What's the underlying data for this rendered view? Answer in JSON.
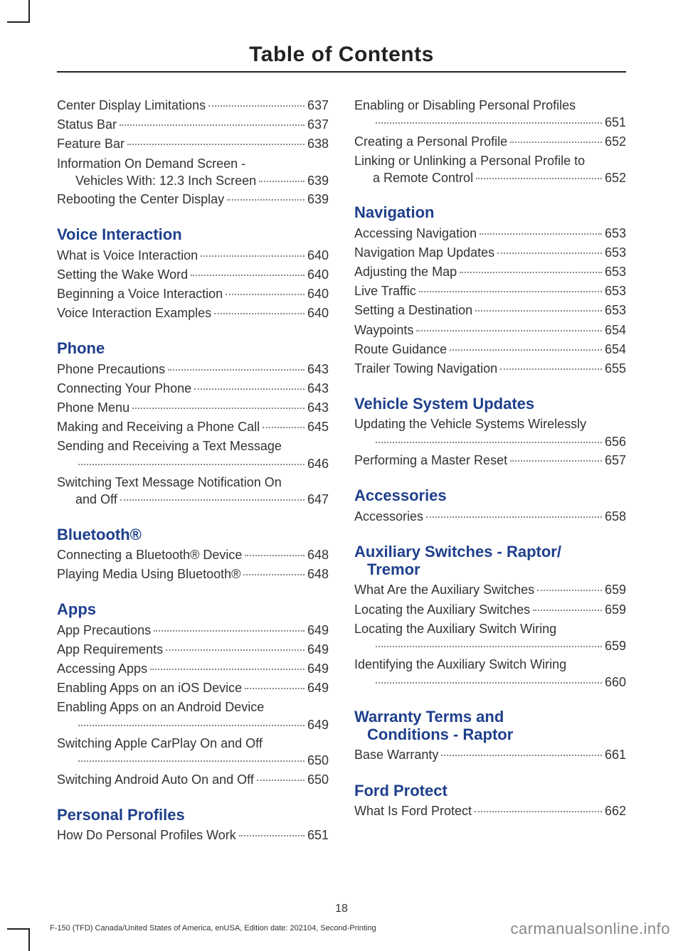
{
  "title": "Table of Contents",
  "page_number": "18",
  "footer_left": "F-150 (TFD) Canada/United States of America, enUSA, Edition date: 202104, Second-Printing",
  "footer_right": "carmanualsonline.info",
  "left": {
    "top_entries": [
      {
        "label": "Center Display Limitations",
        "pg": "637"
      },
      {
        "label": "Status Bar",
        "pg": "637"
      },
      {
        "label": "Feature Bar",
        "pg": "638"
      }
    ],
    "info_on_demand": {
      "line1": "Information On Demand Screen -",
      "line2_label": "Vehicles With: 12.3 Inch Screen",
      "pg": "639"
    },
    "top_entries2": [
      {
        "label": "Rebooting the Center Display",
        "pg": "639"
      }
    ],
    "voice_head": "Voice Interaction",
    "voice": [
      {
        "label": "What is Voice Interaction",
        "pg": "640"
      },
      {
        "label": "Setting the Wake Word",
        "pg": "640"
      },
      {
        "label": "Beginning a Voice Interaction",
        "pg": "640"
      },
      {
        "label": "Voice Interaction Examples",
        "pg": "640"
      }
    ],
    "phone_head": "Phone",
    "phone1": [
      {
        "label": "Phone Precautions",
        "pg": "643"
      },
      {
        "label": "Connecting Your Phone",
        "pg": "643"
      },
      {
        "label": "Phone Menu",
        "pg": "643"
      },
      {
        "label": "Making and Receiving a Phone Call",
        "pg": "645"
      }
    ],
    "phone_text": {
      "line1": "Sending and Receiving a Text Message",
      "pg": "646"
    },
    "phone_switch": {
      "line1": "Switching Text Message Notification On",
      "line2_label": "and Off",
      "pg": "647"
    },
    "bt_head": "Bluetooth®",
    "bt": [
      {
        "label": "Connecting a Bluetooth® Device",
        "pg": "648"
      },
      {
        "label": "Playing Media Using Bluetooth®",
        "pg": "648"
      }
    ],
    "apps_head": "Apps",
    "apps1": [
      {
        "label": "App Precautions",
        "pg": "649"
      },
      {
        "label": "App Requirements",
        "pg": "649"
      },
      {
        "label": "Accessing Apps",
        "pg": "649"
      },
      {
        "label": "Enabling Apps on an iOS Device",
        "pg": "649"
      }
    ],
    "apps_android": {
      "line1": "Enabling Apps on an Android Device",
      "pg": "649"
    },
    "apps_carplay": {
      "line1": "Switching Apple CarPlay On and Off",
      "pg": "650"
    },
    "apps2": [
      {
        "label": "Switching Android Auto On and Off",
        "pg": "650"
      }
    ],
    "pp_head": "Personal Profiles",
    "pp": [
      {
        "label": "How Do Personal Profiles Work",
        "pg": "651"
      }
    ]
  },
  "right": {
    "pp_enabling": {
      "line1": "Enabling or Disabling Personal Profiles",
      "pg": "651"
    },
    "pp1": [
      {
        "label": "Creating a Personal Profile",
        "pg": "652"
      }
    ],
    "pp_link": {
      "line1": "Linking or Unlinking a Personal Profile to",
      "line2_label": "a Remote Control",
      "pg": "652"
    },
    "nav_head": "Navigation",
    "nav": [
      {
        "label": "Accessing Navigation",
        "pg": "653"
      },
      {
        "label": "Navigation Map Updates",
        "pg": "653"
      },
      {
        "label": "Adjusting the Map",
        "pg": "653"
      },
      {
        "label": "Live Traffic",
        "pg": "653"
      },
      {
        "label": "Setting a Destination",
        "pg": "653"
      },
      {
        "label": "Waypoints",
        "pg": "654"
      },
      {
        "label": "Route Guidance",
        "pg": "654"
      },
      {
        "label": "Trailer Towing Navigation",
        "pg": "655"
      }
    ],
    "vsu_head": "Vehicle System Updates",
    "vsu_wireless": {
      "line1": "Updating the Vehicle Systems Wirelessly",
      "pg": "656"
    },
    "vsu1": [
      {
        "label": "Performing a Master Reset",
        "pg": "657"
      }
    ],
    "acc_head": "Accessories",
    "acc": [
      {
        "label": "Accessories",
        "pg": "658"
      }
    ],
    "aux_head_l1": "Auxiliary Switches - Raptor/",
    "aux_head_l2": "Tremor",
    "aux1": [
      {
        "label": "What Are the Auxiliary Switches",
        "pg": "659"
      },
      {
        "label": "Locating the Auxiliary Switches",
        "pg": "659"
      }
    ],
    "aux_locate": {
      "line1": "Locating the Auxiliary Switch Wiring",
      "pg": "659"
    },
    "aux_identify": {
      "line1": "Identifying the Auxiliary Switch Wiring",
      "pg": "660"
    },
    "warranty_head_l1": "Warranty Terms and",
    "warranty_head_l2": "Conditions - Raptor",
    "warranty": [
      {
        "label": "Base Warranty",
        "pg": "661"
      }
    ],
    "fp_head": "Ford Protect",
    "fp": [
      {
        "label": "What Is Ford Protect",
        "pg": "662"
      }
    ]
  }
}
